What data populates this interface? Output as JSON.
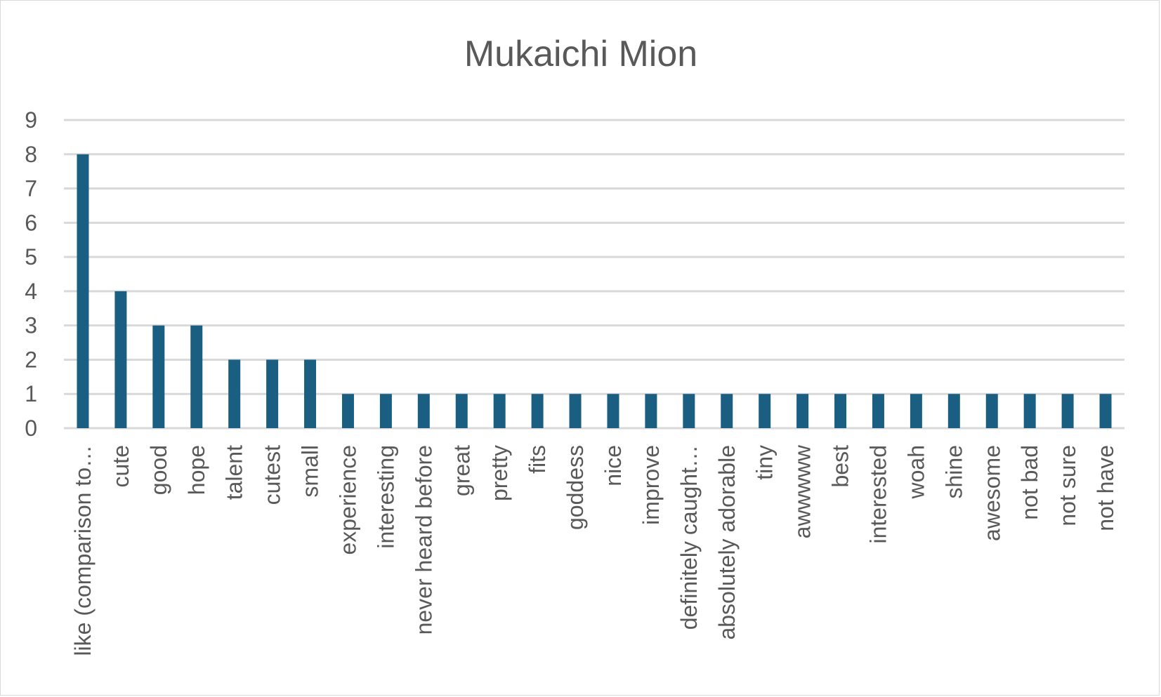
{
  "chart_data": {
    "type": "bar",
    "title": "Mukaichi Mion",
    "xlabel": "",
    "ylabel": "",
    "ylim": [
      0,
      9
    ],
    "yticks": [
      0,
      1,
      2,
      3,
      4,
      5,
      6,
      7,
      8,
      9
    ],
    "grid": true,
    "legend": "none",
    "colors": {
      "bar": "#1a5f82",
      "grid": "#d9d9d9",
      "text": "#595959"
    },
    "categories": [
      "like (comparison to…",
      "cute",
      "good",
      "hope",
      "talent",
      "cutest",
      "small",
      "experience",
      "interesting",
      "never heard before",
      "great",
      "pretty",
      "fits",
      "goddess",
      "nice",
      "improve",
      "definitely caught…",
      "absolutely adorable",
      "tiny",
      "awwwww",
      "best",
      "interested",
      "woah",
      "shine",
      "awesome",
      "not bad",
      "not sure",
      "not have"
    ],
    "values": [
      8,
      4,
      3,
      3,
      2,
      2,
      2,
      1,
      1,
      1,
      1,
      1,
      1,
      1,
      1,
      1,
      1,
      1,
      1,
      1,
      1,
      1,
      1,
      1,
      1,
      1,
      1,
      1
    ]
  }
}
